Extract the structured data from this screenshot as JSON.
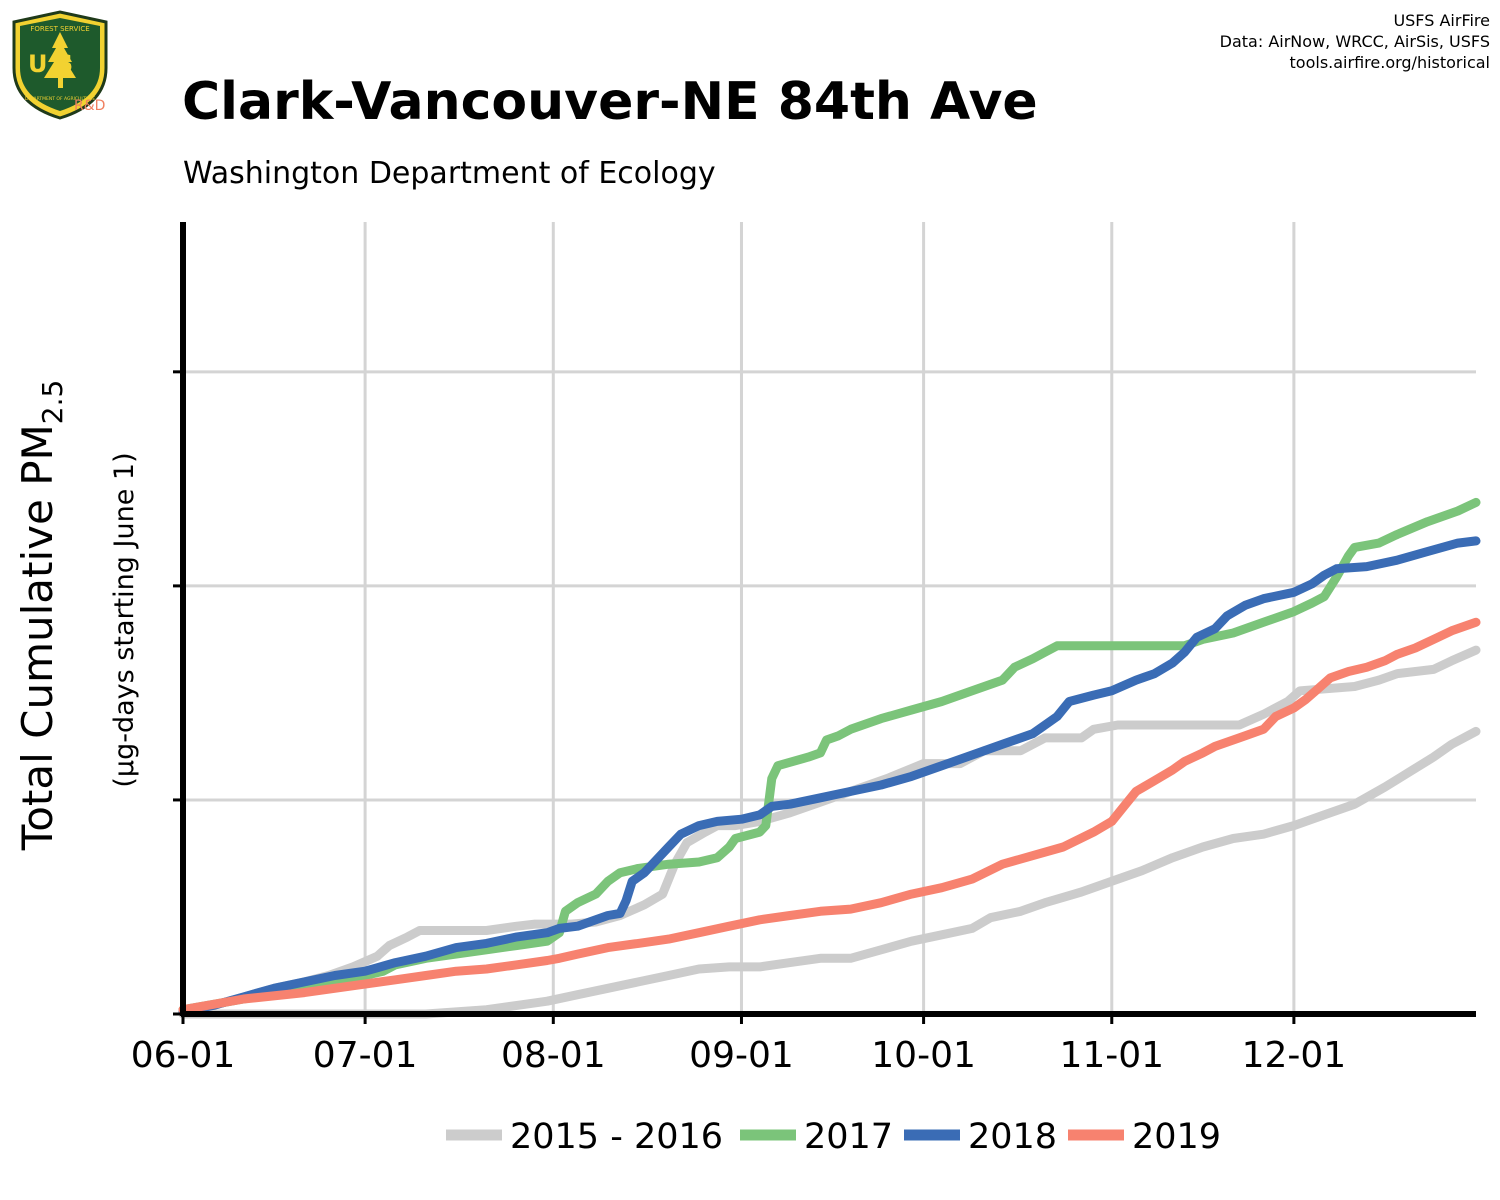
{
  "header": {
    "title": "Clark-Vancouver-NE 84th Ave",
    "subtitle": "Washington Department of Ecology",
    "credits": [
      "USFS AirFire",
      "Data: AirNow, WRCC, AirSis, USFS",
      "tools.airfire.org/historical"
    ],
    "logo": {
      "top_text": "FOREST SERVICE",
      "letters": "U S",
      "bottom_text": "DEPARTMENT OF AGRICULTURE",
      "tag": "R&D"
    }
  },
  "chart_data": {
    "type": "line",
    "title": "Clark-Vancouver-NE 84th Ave",
    "subtitle": "Washington Department of Ecology",
    "ylabel": "Total Cumulative PM",
    "ylabel_sub": "2.5",
    "ylabel_note": "(µg-days starting June 1)",
    "xlabel": "",
    "xtick_labels": [
      "06-01",
      "07-01",
      "08-01",
      "09-01",
      "10-01",
      "11-01",
      "12-01"
    ],
    "xtick_days": [
      0,
      30,
      61,
      92,
      122,
      153,
      183
    ],
    "xlim": [
      0,
      213
    ],
    "ylim": [
      0,
      3.7
    ],
    "yticks": [
      0,
      1,
      2,
      3
    ],
    "ytick_labels_shown": false,
    "grid": true,
    "legend_position": "bottom",
    "series": [
      {
        "name": "2015 - 2016",
        "color": "#cccccc",
        "points": [
          [
            0,
            0.01
          ],
          [
            5,
            0.04
          ],
          [
            10,
            0.08
          ],
          [
            15,
            0.12
          ],
          [
            20,
            0.15
          ],
          [
            24,
            0.18
          ],
          [
            28,
            0.22
          ],
          [
            32,
            0.27
          ],
          [
            34,
            0.32
          ],
          [
            37,
            0.36
          ],
          [
            39,
            0.39
          ],
          [
            45,
            0.39
          ],
          [
            50,
            0.39
          ],
          [
            55,
            0.41
          ],
          [
            58,
            0.42
          ],
          [
            64,
            0.42
          ],
          [
            68,
            0.43
          ],
          [
            72,
            0.46
          ],
          [
            76,
            0.51
          ],
          [
            79,
            0.56
          ],
          [
            81,
            0.7
          ],
          [
            83,
            0.8
          ],
          [
            86,
            0.85
          ],
          [
            88,
            0.88
          ],
          [
            91,
            0.88
          ],
          [
            95,
            0.9
          ],
          [
            100,
            0.94
          ],
          [
            105,
            0.99
          ],
          [
            110,
            1.04
          ],
          [
            116,
            1.1
          ],
          [
            122,
            1.17
          ],
          [
            128,
            1.17
          ],
          [
            132,
            1.23
          ],
          [
            138,
            1.23
          ],
          [
            142,
            1.29
          ],
          [
            148,
            1.29
          ],
          [
            150,
            1.33
          ],
          [
            154,
            1.35
          ],
          [
            165,
            1.35
          ],
          [
            174,
            1.35
          ],
          [
            178,
            1.4
          ],
          [
            182,
            1.46
          ],
          [
            184,
            1.51
          ],
          [
            193,
            1.53
          ],
          [
            197,
            1.56
          ],
          [
            200,
            1.59
          ],
          [
            206,
            1.61
          ],
          [
            209,
            1.65
          ],
          [
            213,
            1.7
          ]
        ]
      },
      {
        "name": "2015 - 2016",
        "color": "#cccccc",
        "points": [
          [
            0,
            0
          ],
          [
            20,
            0
          ],
          [
            40,
            0
          ],
          [
            45,
            0.01
          ],
          [
            50,
            0.02
          ],
          [
            55,
            0.04
          ],
          [
            60,
            0.06
          ],
          [
            65,
            0.09
          ],
          [
            70,
            0.12
          ],
          [
            75,
            0.15
          ],
          [
            80,
            0.18
          ],
          [
            85,
            0.21
          ],
          [
            90,
            0.22
          ],
          [
            95,
            0.22
          ],
          [
            100,
            0.24
          ],
          [
            105,
            0.26
          ],
          [
            110,
            0.26
          ],
          [
            115,
            0.3
          ],
          [
            120,
            0.34
          ],
          [
            125,
            0.37
          ],
          [
            130,
            0.4
          ],
          [
            133,
            0.45
          ],
          [
            138,
            0.48
          ],
          [
            142,
            0.52
          ],
          [
            148,
            0.57
          ],
          [
            153,
            0.62
          ],
          [
            158,
            0.67
          ],
          [
            163,
            0.73
          ],
          [
            168,
            0.78
          ],
          [
            173,
            0.82
          ],
          [
            178,
            0.84
          ],
          [
            183,
            0.88
          ],
          [
            188,
            0.93
          ],
          [
            193,
            0.98
          ],
          [
            198,
            1.06
          ],
          [
            202,
            1.13
          ],
          [
            206,
            1.2
          ],
          [
            209,
            1.26
          ],
          [
            213,
            1.32
          ]
        ]
      },
      {
        "name": "2017",
        "color": "#7bc47a",
        "points": [
          [
            0,
            0.02
          ],
          [
            10,
            0.07
          ],
          [
            20,
            0.12
          ],
          [
            25,
            0.15
          ],
          [
            30,
            0.18
          ],
          [
            33,
            0.2
          ],
          [
            35,
            0.23
          ],
          [
            40,
            0.26
          ],
          [
            45,
            0.28
          ],
          [
            50,
            0.3
          ],
          [
            55,
            0.32
          ],
          [
            60,
            0.34
          ],
          [
            62,
            0.38
          ],
          [
            63,
            0.48
          ],
          [
            65,
            0.52
          ],
          [
            68,
            0.56
          ],
          [
            70,
            0.62
          ],
          [
            72,
            0.66
          ],
          [
            75,
            0.68
          ],
          [
            80,
            0.7
          ],
          [
            85,
            0.71
          ],
          [
            88,
            0.73
          ],
          [
            90,
            0.78
          ],
          [
            91,
            0.82
          ],
          [
            95,
            0.85
          ],
          [
            96,
            0.88
          ],
          [
            97,
            1.1
          ],
          [
            98,
            1.16
          ],
          [
            103,
            1.2
          ],
          [
            105,
            1.22
          ],
          [
            106,
            1.28
          ],
          [
            108,
            1.3
          ],
          [
            110,
            1.33
          ],
          [
            115,
            1.38
          ],
          [
            120,
            1.42
          ],
          [
            125,
            1.46
          ],
          [
            130,
            1.51
          ],
          [
            135,
            1.56
          ],
          [
            137,
            1.62
          ],
          [
            140,
            1.66
          ],
          [
            142,
            1.69
          ],
          [
            144,
            1.72
          ],
          [
            148,
            1.72
          ],
          [
            152,
            1.72
          ],
          [
            158,
            1.72
          ],
          [
            165,
            1.72
          ],
          [
            168,
            1.75
          ],
          [
            173,
            1.78
          ],
          [
            178,
            1.83
          ],
          [
            183,
            1.88
          ],
          [
            186,
            1.92
          ],
          [
            188,
            1.95
          ],
          [
            190,
            2.04
          ],
          [
            192,
            2.14
          ],
          [
            193,
            2.18
          ],
          [
            197,
            2.2
          ],
          [
            200,
            2.24
          ],
          [
            205,
            2.3
          ],
          [
            210,
            2.35
          ],
          [
            213,
            2.39
          ]
        ]
      },
      {
        "name": "2018",
        "color": "#3a6cb5",
        "points": [
          [
            0,
            0.01
          ],
          [
            5,
            0.04
          ],
          [
            10,
            0.08
          ],
          [
            15,
            0.12
          ],
          [
            20,
            0.15
          ],
          [
            25,
            0.18
          ],
          [
            30,
            0.2
          ],
          [
            35,
            0.24
          ],
          [
            40,
            0.27
          ],
          [
            45,
            0.31
          ],
          [
            50,
            0.33
          ],
          [
            55,
            0.36
          ],
          [
            60,
            0.38
          ],
          [
            62,
            0.4
          ],
          [
            65,
            0.41
          ],
          [
            68,
            0.44
          ],
          [
            70,
            0.46
          ],
          [
            72,
            0.47
          ],
          [
            73,
            0.53
          ],
          [
            74,
            0.62
          ],
          [
            76,
            0.66
          ],
          [
            78,
            0.72
          ],
          [
            80,
            0.78
          ],
          [
            82,
            0.84
          ],
          [
            85,
            0.88
          ],
          [
            88,
            0.9
          ],
          [
            92,
            0.91
          ],
          [
            95,
            0.93
          ],
          [
            97,
            0.97
          ],
          [
            100,
            0.98
          ],
          [
            105,
            1.01
          ],
          [
            110,
            1.04
          ],
          [
            115,
            1.07
          ],
          [
            120,
            1.11
          ],
          [
            125,
            1.16
          ],
          [
            130,
            1.21
          ],
          [
            135,
            1.26
          ],
          [
            140,
            1.31
          ],
          [
            144,
            1.39
          ],
          [
            146,
            1.46
          ],
          [
            150,
            1.49
          ],
          [
            153,
            1.51
          ],
          [
            157,
            1.56
          ],
          [
            160,
            1.59
          ],
          [
            163,
            1.64
          ],
          [
            165,
            1.69
          ],
          [
            167,
            1.76
          ],
          [
            170,
            1.8
          ],
          [
            172,
            1.86
          ],
          [
            175,
            1.91
          ],
          [
            178,
            1.94
          ],
          [
            183,
            1.97
          ],
          [
            186,
            2.01
          ],
          [
            188,
            2.05
          ],
          [
            190,
            2.08
          ],
          [
            195,
            2.09
          ],
          [
            200,
            2.12
          ],
          [
            205,
            2.16
          ],
          [
            210,
            2.2
          ],
          [
            213,
            2.21
          ]
        ]
      },
      {
        "name": "2019",
        "color": "#f7826f",
        "points": [
          [
            0,
            0.02
          ],
          [
            10,
            0.07
          ],
          [
            20,
            0.1
          ],
          [
            30,
            0.14
          ],
          [
            35,
            0.16
          ],
          [
            40,
            0.18
          ],
          [
            45,
            0.2
          ],
          [
            50,
            0.21
          ],
          [
            55,
            0.23
          ],
          [
            60,
            0.25
          ],
          [
            62,
            0.26
          ],
          [
            65,
            0.28
          ],
          [
            70,
            0.31
          ],
          [
            75,
            0.33
          ],
          [
            80,
            0.35
          ],
          [
            85,
            0.38
          ],
          [
            90,
            0.41
          ],
          [
            95,
            0.44
          ],
          [
            100,
            0.46
          ],
          [
            105,
            0.48
          ],
          [
            110,
            0.49
          ],
          [
            115,
            0.52
          ],
          [
            120,
            0.56
          ],
          [
            125,
            0.59
          ],
          [
            130,
            0.63
          ],
          [
            135,
            0.7
          ],
          [
            140,
            0.74
          ],
          [
            145,
            0.78
          ],
          [
            150,
            0.85
          ],
          [
            153,
            0.9
          ],
          [
            155,
            0.97
          ],
          [
            157,
            1.04
          ],
          [
            160,
            1.09
          ],
          [
            163,
            1.14
          ],
          [
            165,
            1.18
          ],
          [
            168,
            1.22
          ],
          [
            170,
            1.25
          ],
          [
            173,
            1.28
          ],
          [
            175,
            1.3
          ],
          [
            178,
            1.33
          ],
          [
            180,
            1.39
          ],
          [
            183,
            1.43
          ],
          [
            185,
            1.47
          ],
          [
            187,
            1.52
          ],
          [
            189,
            1.57
          ],
          [
            192,
            1.6
          ],
          [
            195,
            1.62
          ],
          [
            198,
            1.65
          ],
          [
            200,
            1.68
          ],
          [
            203,
            1.71
          ],
          [
            206,
            1.75
          ],
          [
            209,
            1.79
          ],
          [
            213,
            1.83
          ]
        ]
      }
    ],
    "legend": [
      {
        "label": "2015 - 2016",
        "color": "#cccccc"
      },
      {
        "label": "2017",
        "color": "#7bc47a"
      },
      {
        "label": "2018",
        "color": "#3a6cb5"
      },
      {
        "label": "2019",
        "color": "#f7826f"
      }
    ]
  }
}
